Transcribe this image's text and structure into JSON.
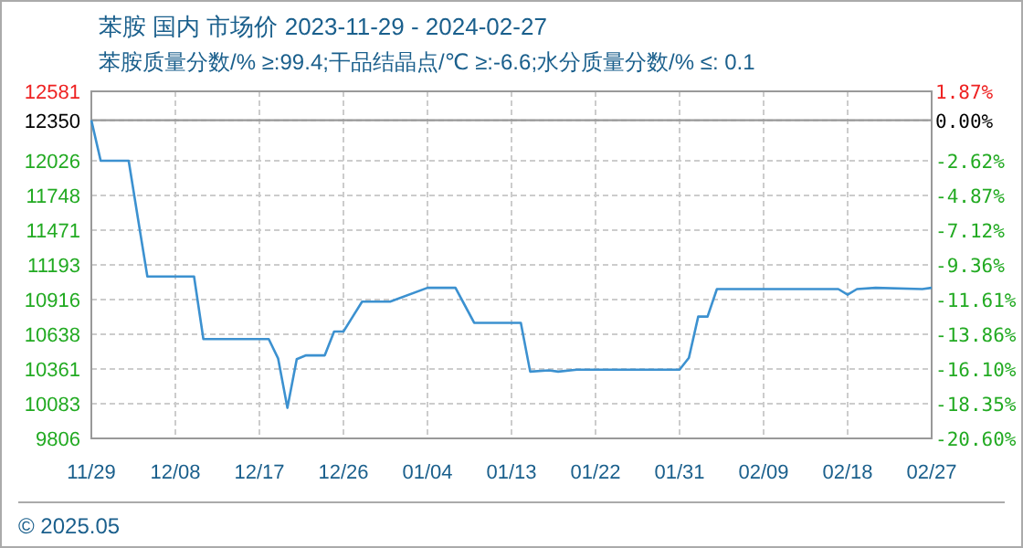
{
  "chart_data": {
    "type": "line",
    "title": "苯胺 国内 市场价 2023-11-29 - 2024-02-27",
    "subtitle": "苯胺质量分数/% ≥:99.4;干品结晶点/℃  ≥:-6.6;水分质量分数/%  ≤: 0.1",
    "annotations": [
      "© 2025.05"
    ],
    "x": [
      "2023-11-29",
      "2023-11-30",
      "2023-12-03",
      "2023-12-04",
      "2023-12-05",
      "2023-12-10",
      "2023-12-11",
      "2023-12-18",
      "2023-12-19",
      "2023-12-20",
      "2023-12-21",
      "2023-12-22",
      "2023-12-24",
      "2023-12-25",
      "2023-12-26",
      "2023-12-27",
      "2023-12-28",
      "2023-12-31",
      "2024-01-04",
      "2024-01-07",
      "2024-01-09",
      "2024-01-14",
      "2024-01-15",
      "2024-01-17",
      "2024-01-18",
      "2024-01-20",
      "2024-01-31",
      "2024-02-01",
      "2024-02-02",
      "2024-02-03",
      "2024-02-04",
      "2024-02-17",
      "2024-02-18",
      "2024-02-19",
      "2024-02-21",
      "2024-02-26",
      "2024-02-27"
    ],
    "series": [
      {
        "color": "#3c91d0",
        "values": [
          12350,
          12026,
          12026,
          11560,
          11100,
          11100,
          10600,
          10600,
          10446,
          10050,
          10440,
          10470,
          10470,
          10660,
          10660,
          10780,
          10900,
          10900,
          11010,
          11010,
          10730,
          10730,
          10340,
          10350,
          10340,
          10355,
          10355,
          10450,
          10780,
          10780,
          11000,
          11000,
          10955,
          11000,
          11010,
          11000,
          11010
        ]
      }
    ],
    "xlim": [
      "2023-11-29",
      "2024-02-27"
    ],
    "xticks": [
      {
        "value": "2023-11-29",
        "label": "11/29"
      },
      {
        "value": "2023-12-08",
        "label": "12/08"
      },
      {
        "value": "2023-12-17",
        "label": "12/17"
      },
      {
        "value": "2023-12-26",
        "label": "12/26"
      },
      {
        "value": "2024-01-04",
        "label": "01/04"
      },
      {
        "value": "2024-01-13",
        "label": "01/13"
      },
      {
        "value": "2024-01-22",
        "label": "01/22"
      },
      {
        "value": "2024-01-31",
        "label": "01/31"
      },
      {
        "value": "2024-02-09",
        "label": "02/09"
      },
      {
        "value": "2024-02-18",
        "label": "02/18"
      },
      {
        "value": "2024-02-27",
        "label": "02/27"
      }
    ],
    "ylim": [
      9806,
      12581
    ],
    "yticks": [
      9806,
      10083,
      10361,
      10638,
      10916,
      11193,
      11471,
      11748,
      12026,
      12350,
      12581
    ],
    "y2lim": [
      -20.6,
      1.87
    ],
    "y2ticks": [
      {
        "value": -20.6,
        "label": "-20.60%"
      },
      {
        "value": -18.35,
        "label": "-18.35%"
      },
      {
        "value": -16.1,
        "label": "-16.10%"
      },
      {
        "value": -13.86,
        "label": "-13.86%"
      },
      {
        "value": -11.61,
        "label": "-11.61%"
      },
      {
        "value": -9.36,
        "label": "-9.36%"
      },
      {
        "value": -7.12,
        "label": "-7.12%"
      },
      {
        "value": -4.87,
        "label": "-4.87%"
      },
      {
        "value": -2.62,
        "label": "-2.62%"
      },
      {
        "value": 0,
        "label": "0.00%"
      },
      {
        "value": 1.87,
        "label": "1.87%"
      }
    ],
    "ref_lines": [
      {
        "axis": "y",
        "value": 12350,
        "color": "#999999",
        "line_style": "solid"
      }
    ],
    "grid": true,
    "marker": "none",
    "line_style": "solid"
  }
}
